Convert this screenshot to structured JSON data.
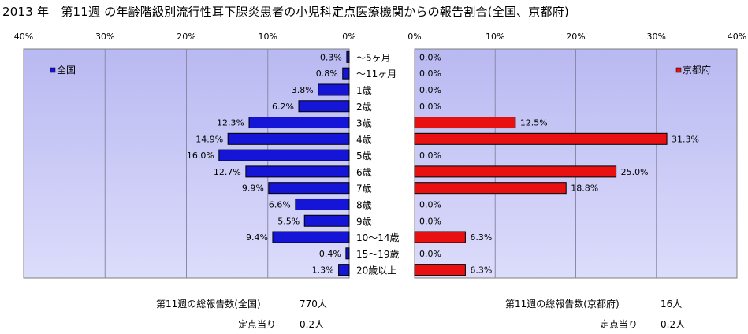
{
  "title": "2013 年　第11週 の年齢階級別流行性耳下腺炎患者の小児科定点医療機関からの報告割合(全国、京都府)",
  "chart_data": [
    {
      "type": "bar",
      "orientation": "horizontal",
      "direction": "leftward",
      "legend": "全国",
      "legend_placement": "top-left",
      "color": "#1515d8",
      "xlim": [
        0,
        40
      ],
      "ticks": [
        "0%",
        "10%",
        "20%",
        "30%",
        "40%"
      ],
      "grid": true,
      "categories": [
        "～5ヶ月",
        "～11ヶ月",
        "1歳",
        "2歳",
        "3歳",
        "4歳",
        "5歳",
        "6歳",
        "7歳",
        "8歳",
        "9歳",
        "10～14歳",
        "15～19歳",
        "20歳以上"
      ],
      "values": [
        0.3,
        0.8,
        3.8,
        6.2,
        12.3,
        14.9,
        16.0,
        12.7,
        9.9,
        6.6,
        5.5,
        9.4,
        0.4,
        1.3
      ],
      "labels": [
        "0.3%",
        "0.8%",
        "3.8%",
        "6.2%",
        "12.3%",
        "14.9%",
        "16.0%",
        "12.7%",
        "9.9%",
        "6.6%",
        "5.5%",
        "9.4%",
        "0.4%",
        "1.3%"
      ]
    },
    {
      "type": "bar",
      "orientation": "horizontal",
      "direction": "rightward",
      "legend": "京都府",
      "legend_placement": "top-right",
      "color": "#e81010",
      "xlim": [
        0,
        40
      ],
      "ticks": [
        "0%",
        "10%",
        "20%",
        "30%",
        "40%"
      ],
      "grid": true,
      "categories": [
        "～5ヶ月",
        "～11ヶ月",
        "1歳",
        "2歳",
        "3歳",
        "4歳",
        "5歳",
        "6歳",
        "7歳",
        "8歳",
        "9歳",
        "10～14歳",
        "15～19歳",
        "20歳以上"
      ],
      "values": [
        0.0,
        0.0,
        0.0,
        0.0,
        12.5,
        31.3,
        0.0,
        25.0,
        18.8,
        0.0,
        0.0,
        6.3,
        0.0,
        6.3
      ],
      "labels": [
        "0.0%",
        "0.0%",
        "0.0%",
        "0.0%",
        "12.5%",
        "31.3%",
        "0.0%",
        "25.0%",
        "18.8%",
        "0.0%",
        "0.0%",
        "6.3%",
        "0.0%",
        "6.3%"
      ]
    }
  ],
  "footer": {
    "national_total_label": "第11週の総報告数(全国)",
    "national_total_value": "770人",
    "national_per_site_label": "定点当り",
    "national_per_site_value": "0.2人",
    "kyoto_total_label": "第11週の総報告数(京都府)",
    "kyoto_total_value": "16人",
    "kyoto_per_site_label": "定点当り",
    "kyoto_per_site_value": "0.2人"
  }
}
